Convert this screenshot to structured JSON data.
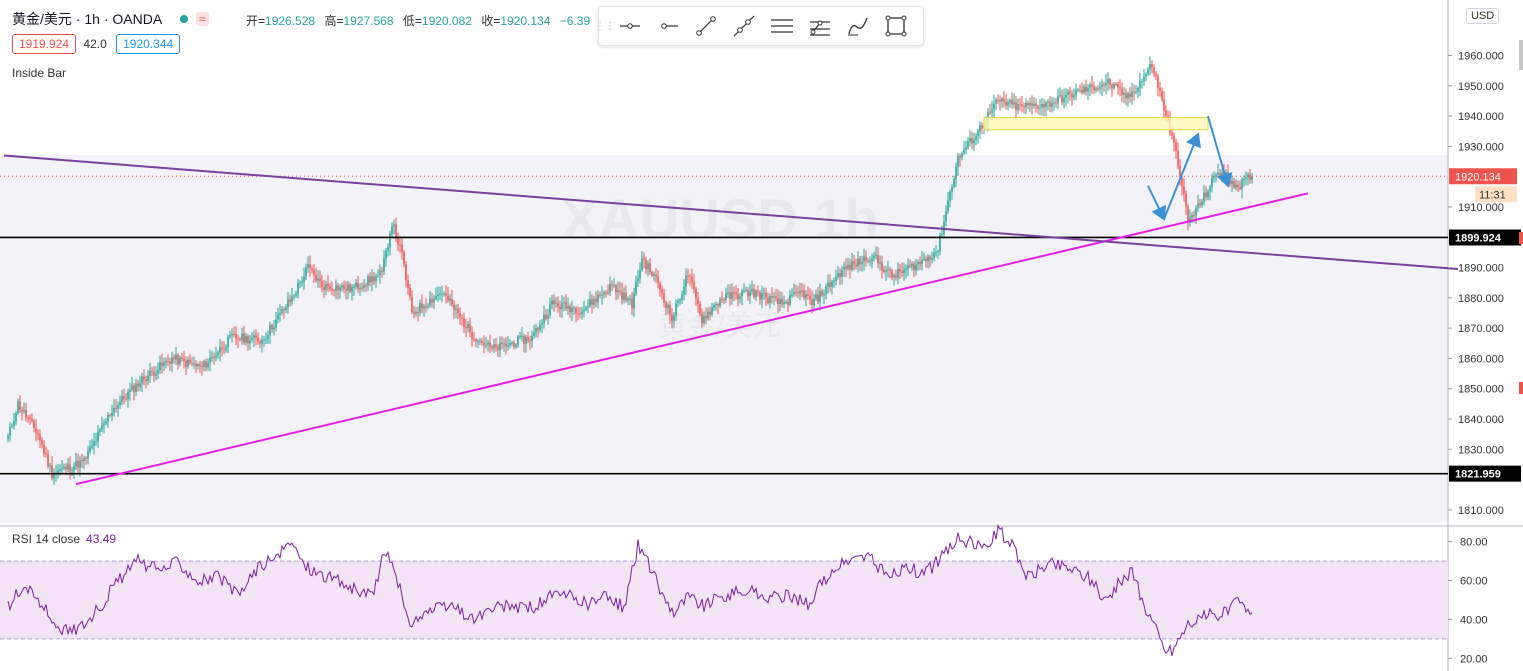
{
  "header": {
    "symbol": "黄金/美元",
    "interval": "1h",
    "exchange": "OANDA",
    "wave_label": "≈",
    "ohlc": {
      "open_label": "开",
      "open": "1926.528",
      "high_label": "高",
      "high": "1927.568",
      "low_label": "低",
      "low": "1920.082",
      "close_label": "收",
      "close": "1920.134",
      "change": "−6.39"
    }
  },
  "trade": {
    "sell": "1919.924",
    "spread": "42.0",
    "buy": "1920.344"
  },
  "study_name": "Inside Bar",
  "watermark": {
    "symbol": "XAUUSD",
    "interval": "1h",
    "name": "黄金/美元"
  },
  "currency": "USD",
  "toolbar": {
    "tools": [
      {
        "name": "horizontal-line-tool-icon"
      },
      {
        "name": "horizontal-ray-tool-icon"
      },
      {
        "name": "trend-line-tool-icon"
      },
      {
        "name": "extended-line-tool-icon"
      },
      {
        "name": "parallel-channel-tool-icon"
      },
      {
        "name": "pitchfork-tool-icon"
      },
      {
        "name": "brush-tool-icon"
      },
      {
        "name": "rectangle-tool-icon"
      }
    ]
  },
  "rsi_panel": {
    "label": "RSI 14 close",
    "value": "43.49"
  },
  "colors": {
    "up": "#26a69a",
    "down": "#ef5350",
    "ascending_trendline": "#e91ee6",
    "descending_trendline": "#7b3f9e",
    "arrows": "#3d8fd6",
    "zone_fill": "#fff9b3",
    "zone_border": "#e6d64d",
    "rsi_line": "#7b1fa2",
    "rsi_band": "#f3e5f5",
    "price_panel_bg": "#f3f2f8"
  },
  "chart_data": [
    {
      "type": "candlestick",
      "title": "XAUUSD 1h",
      "yaxis_ticks": [
        "1960.000",
        "1950.000",
        "1940.000",
        "1930.000",
        "1910.000",
        "1890.000",
        "1880.000",
        "1870.000",
        "1860.000",
        "1850.000",
        "1840.000",
        "1830.000",
        "1810.000"
      ],
      "ylim": [
        1806,
        1977
      ],
      "current_price": "1920.134",
      "countdown": "11:31",
      "price_path_keypoints": [
        [
          0,
          1834
        ],
        [
          5,
          1845
        ],
        [
          15,
          1835
        ],
        [
          22,
          1822
        ],
        [
          38,
          1826
        ],
        [
          52,
          1843
        ],
        [
          67,
          1853
        ],
        [
          82,
          1860
        ],
        [
          97,
          1857
        ],
        [
          112,
          1867
        ],
        [
          127,
          1866
        ],
        [
          142,
          1880
        ],
        [
          150,
          1890
        ],
        [
          157,
          1884
        ],
        [
          172,
          1883
        ],
        [
          187,
          1888
        ],
        [
          192,
          1905
        ],
        [
          197,
          1894
        ],
        [
          202,
          1875
        ],
        [
          217,
          1882
        ],
        [
          232,
          1868
        ],
        [
          242,
          1863
        ],
        [
          262,
          1867
        ],
        [
          272,
          1878
        ],
        [
          287,
          1876
        ],
        [
          302,
          1884
        ],
        [
          312,
          1878
        ],
        [
          317,
          1893
        ],
        [
          325,
          1885
        ],
        [
          332,
          1873
        ],
        [
          340,
          1888
        ],
        [
          347,
          1873
        ],
        [
          357,
          1880
        ],
        [
          372,
          1882
        ],
        [
          387,
          1878
        ],
        [
          397,
          1882
        ],
        [
          402,
          1878
        ],
        [
          417,
          1889
        ],
        [
          432,
          1894
        ],
        [
          442,
          1887
        ],
        [
          457,
          1892
        ],
        [
          465,
          1896
        ],
        [
          470,
          1912
        ],
        [
          475,
          1926
        ],
        [
          485,
          1935
        ],
        [
          495,
          1945
        ],
        [
          505,
          1943
        ],
        [
          520,
          1944
        ],
        [
          535,
          1948
        ],
        [
          550,
          1951
        ],
        [
          560,
          1946
        ],
        [
          567,
          1952
        ],
        [
          572,
          1957
        ],
        [
          580,
          1938
        ],
        [
          585,
          1925
        ],
        [
          590,
          1905
        ],
        [
          597,
          1912
        ],
        [
          605,
          1922
        ],
        [
          615,
          1917
        ],
        [
          622,
          1920
        ]
      ],
      "horizontal_levels": [
        {
          "price": 1899.924,
          "label": "1899.924"
        },
        {
          "price": 1821.959,
          "label": "1821.959"
        }
      ],
      "trendlines": [
        {
          "name": "ascending-support",
          "points": [
            [
              0,
              1818.5
            ],
            [
              650,
              1914.5
            ]
          ]
        },
        {
          "name": "descending-resistance",
          "points": [
            [
              0,
              1927
            ],
            [
              725,
              1889.5
            ]
          ]
        }
      ],
      "zone": {
        "from": [
          488,
          1935.5
        ],
        "to": [
          600,
          1939.5
        ]
      },
      "projection_arrows": [
        [
          [
            570,
            1917
          ],
          [
            578,
            1906
          ]
        ],
        [
          [
            578,
            1906
          ],
          [
            595,
            1934
          ]
        ],
        [
          [
            600,
            1940
          ],
          [
            610,
            1917
          ]
        ]
      ]
    },
    {
      "type": "line",
      "title": "RSI 14 close",
      "yaxis_ticks": [
        "80.00",
        "60.00",
        "40.00",
        "20.00"
      ],
      "ylim": [
        15,
        86
      ],
      "bands": [
        30,
        70
      ],
      "last_value": 43.49,
      "keypoints": [
        [
          0,
          46
        ],
        [
          8,
          58
        ],
        [
          15,
          50
        ],
        [
          22,
          40
        ],
        [
          30,
          33
        ],
        [
          38,
          38
        ],
        [
          45,
          45
        ],
        [
          55,
          60
        ],
        [
          65,
          70
        ],
        [
          75,
          65
        ],
        [
          85,
          70
        ],
        [
          95,
          60
        ],
        [
          105,
          62
        ],
        [
          115,
          52
        ],
        [
          125,
          67
        ],
        [
          135,
          72
        ],
        [
          142,
          80
        ],
        [
          148,
          68
        ],
        [
          155,
          64
        ],
        [
          165,
          60
        ],
        [
          175,
          54
        ],
        [
          182,
          52
        ],
        [
          188,
          74
        ],
        [
          193,
          68
        ],
        [
          200,
          38
        ],
        [
          210,
          44
        ],
        [
          222,
          47
        ],
        [
          232,
          40
        ],
        [
          242,
          45
        ],
        [
          252,
          47
        ],
        [
          262,
          46
        ],
        [
          272,
          52
        ],
        [
          280,
          52
        ],
        [
          290,
          48
        ],
        [
          300,
          52
        ],
        [
          308,
          46
        ],
        [
          315,
          78
        ],
        [
          320,
          70
        ],
        [
          327,
          53
        ],
        [
          333,
          44
        ],
        [
          340,
          52
        ],
        [
          348,
          47
        ],
        [
          358,
          52
        ],
        [
          370,
          55
        ],
        [
          380,
          51
        ],
        [
          392,
          52
        ],
        [
          400,
          48
        ],
        [
          410,
          63
        ],
        [
          420,
          70
        ],
        [
          430,
          73
        ],
        [
          440,
          62
        ],
        [
          450,
          67
        ],
        [
          458,
          63
        ],
        [
          465,
          70
        ],
        [
          475,
          82
        ],
        [
          482,
          79
        ],
        [
          488,
          76
        ],
        [
          495,
          86
        ],
        [
          502,
          78
        ],
        [
          510,
          62
        ],
        [
          520,
          69
        ],
        [
          530,
          67
        ],
        [
          540,
          62
        ],
        [
          548,
          50
        ],
        [
          555,
          58
        ],
        [
          562,
          65
        ],
        [
          567,
          50
        ],
        [
          572,
          40
        ],
        [
          578,
          25
        ],
        [
          582,
          24
        ],
        [
          590,
          38
        ],
        [
          600,
          42
        ],
        [
          610,
          44
        ],
        [
          615,
          50
        ],
        [
          620,
          43.49
        ]
      ]
    }
  ]
}
